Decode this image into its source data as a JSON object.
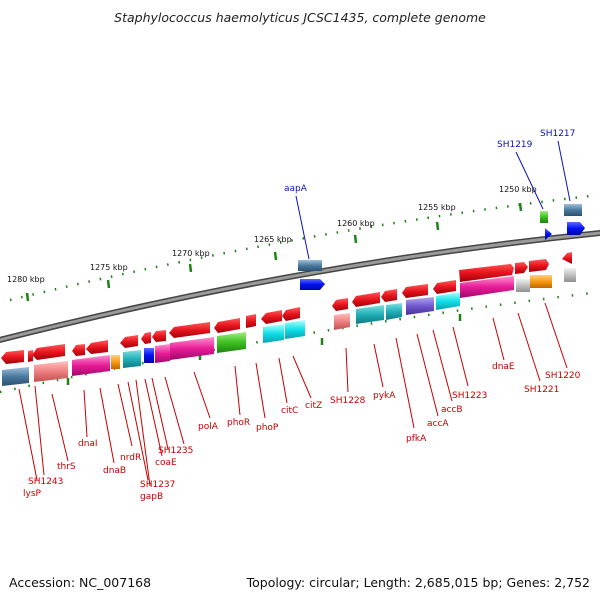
{
  "title": "Staphylococcus haemolyticus JCSC1435, complete genome",
  "footer": {
    "accession": "Accession: NC_007168",
    "topology": "Topology: circular; Length: 2,685,015 bp; Genes: 2,752"
  },
  "scale_labels": [
    "1250 kbp",
    "1255 kbp",
    "1260 kbp",
    "1265 kbp",
    "1270 kbp",
    "1275 kbp",
    "1280 kbp"
  ],
  "gene_labels": {
    "blue": [
      "SH1217",
      "SH1219",
      "aapA"
    ],
    "red": [
      "lysP",
      "SH1243",
      "thrS",
      "dnaI",
      "dnaB",
      "nrdR",
      "gapB",
      "SH1237",
      "coaE",
      "SH1235",
      "polA",
      "phoR",
      "phoP",
      "citC",
      "citZ",
      "SH1228",
      "pykA",
      "pfkA",
      "accA",
      "accB",
      "SH1223",
      "dnaE",
      "SH1221",
      "SH1220"
    ]
  },
  "colors": {
    "backbone": "#777777",
    "gene_red": "#e8141e",
    "label_blue": "#0a14b4",
    "label_red": "#c80000",
    "tick_green": "#1e8214"
  }
}
